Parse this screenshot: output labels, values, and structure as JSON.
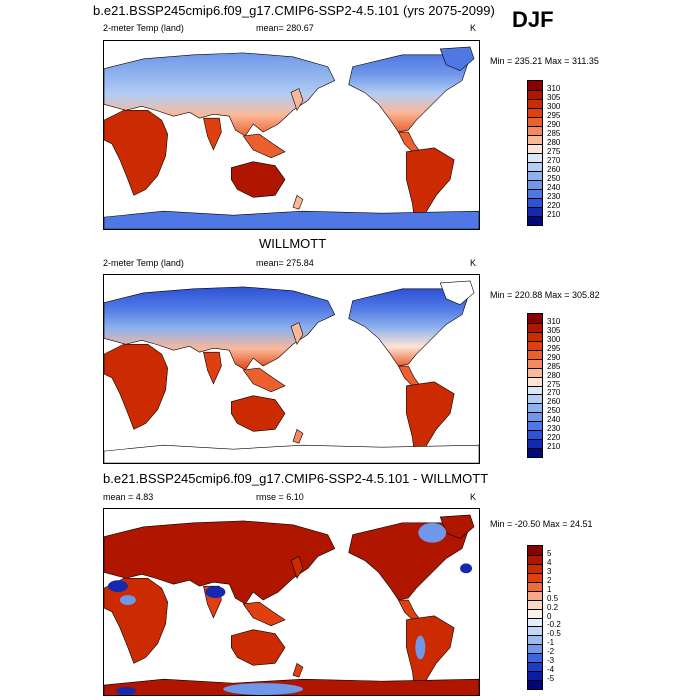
{
  "season": "DJF",
  "panels": [
    {
      "id": "model",
      "title": "b.e21.BSSP245cmip6.f09_g17.CMIP6-SSP2-4.5.101 (yrs 2075-2099)",
      "left_label": "2-meter Temp (land)",
      "center_label": "mean= 280.67",
      "units": "K",
      "minmax": "Min = 235.21 Max = 311.35"
    },
    {
      "id": "obs",
      "title": "WILLMOTT",
      "left_label": "2-meter Temp (land)",
      "center_label": "mean= 275.84",
      "units": "K",
      "minmax": "Min = 220.88 Max = 305.82"
    },
    {
      "id": "diff",
      "title": "b.e21.BSSP245cmip6.f09_g17.CMIP6-SSP2-4.5.101 - WILLMOTT",
      "left_label": "mean =   4.83",
      "center_label": "rmse =   6.10",
      "units": "K",
      "minmax": "Min = -20.50 Max =  24.51"
    }
  ],
  "chart_data": [
    {
      "type": "heatmap",
      "title": "b.e21.BSSP245cmip6.f09_g17.CMIP6-SSP2-4.5.101 (yrs 2075-2099)",
      "variable": "2-meter Temp (land)",
      "units": "K",
      "mean": 280.67,
      "min": 235.21,
      "max": 311.35,
      "legend_levels": [
        "310",
        "305",
        "300",
        "295",
        "290",
        "285",
        "280",
        "275",
        "270",
        "260",
        "250",
        "240",
        "230",
        "220",
        "210"
      ],
      "legend_colors": [
        "#8a0000",
        "#b01500",
        "#cc2a00",
        "#e04010",
        "#ec6030",
        "#f58a60",
        "#fbb898",
        "#fde4d6",
        "#dbe8fa",
        "#b3cdf4",
        "#8eb2ee",
        "#6f97ea",
        "#5078e4",
        "#2d52d6",
        "#1428b0",
        "#000a7a"
      ],
      "legend_placement": "right"
    },
    {
      "type": "heatmap",
      "title": "WILLMOTT",
      "variable": "2-meter Temp (land)",
      "units": "K",
      "mean": 275.84,
      "min": 220.88,
      "max": 305.82,
      "legend_levels": [
        "310",
        "305",
        "300",
        "295",
        "290",
        "285",
        "280",
        "275",
        "270",
        "260",
        "250",
        "240",
        "230",
        "220",
        "210"
      ],
      "legend_colors": [
        "#8a0000",
        "#b01500",
        "#cc2a00",
        "#e04010",
        "#ec6030",
        "#f58a60",
        "#fbb898",
        "#fde4d6",
        "#dbe8fa",
        "#b3cdf4",
        "#8eb2ee",
        "#6f97ea",
        "#5078e4",
        "#2d52d6",
        "#1428b0",
        "#000a7a"
      ],
      "legend_placement": "right"
    },
    {
      "type": "heatmap",
      "title": "b.e21.BSSP245cmip6.f09_g17.CMIP6-SSP2-4.5.101 - WILLMOTT",
      "units": "K",
      "mean": 4.83,
      "rmse": 6.1,
      "min": -20.5,
      "max": 24.51,
      "legend_levels": [
        "5",
        "4",
        "3",
        "2",
        "1",
        "0.5",
        "0.2",
        "0",
        "-0.2",
        "-0.5",
        "-1",
        "-2",
        "-3",
        "-4",
        "-5"
      ],
      "legend_colors": [
        "#8a0000",
        "#b01500",
        "#cc2a00",
        "#e04010",
        "#f06a40",
        "#f8a888",
        "#fcd6c4",
        "#fdf0ea",
        "#e4eefb",
        "#c4d8f6",
        "#9cbcf0",
        "#6f97ea",
        "#3d66de",
        "#1e3cc8",
        "#0a1ca4",
        "#00067a"
      ],
      "legend_placement": "right"
    }
  ]
}
